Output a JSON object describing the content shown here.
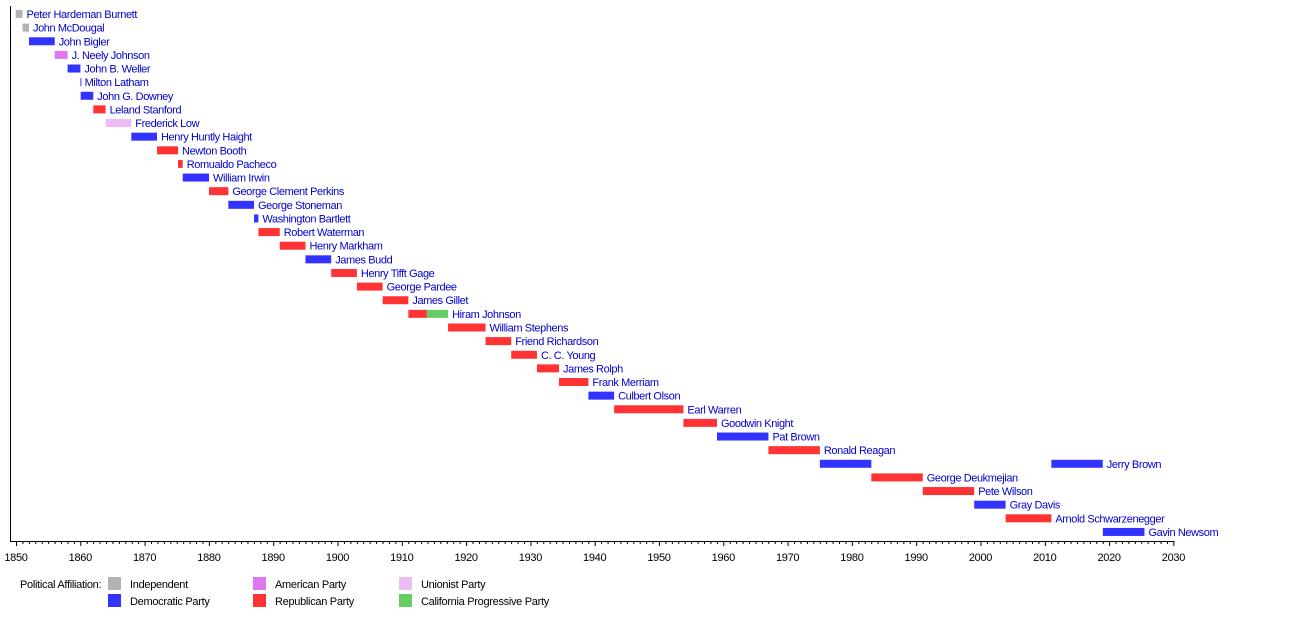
{
  "chart_data": {
    "type": "bar",
    "orientation": "horizontal-timeline",
    "xlim": [
      1850,
      2030
    ],
    "x_ticks": [
      "1850",
      "1860",
      "1870",
      "1880",
      "1890",
      "1900",
      "1910",
      "1920",
      "1930",
      "1940",
      "1950",
      "1960",
      "1970",
      "1980",
      "1990",
      "2000",
      "2010",
      "2020",
      "2030"
    ],
    "grid": false,
    "legend": {
      "title": "Political Affiliation:",
      "placement": "bottom-left",
      "entries": [
        {
          "party": "independent",
          "label": "Independent"
        },
        {
          "party": "democratic",
          "label": "Democratic Party"
        },
        {
          "party": "american",
          "label": "American Party"
        },
        {
          "party": "republican",
          "label": "Republican Party"
        },
        {
          "party": "unionist",
          "label": "Unionist Party"
        },
        {
          "party": "progressive",
          "label": "California Progressive Party"
        }
      ]
    },
    "colors": {
      "independent": "#b3b3b3",
      "democratic": "#3333ff",
      "american": "#dd77f0",
      "republican": "#ff3333",
      "unionist": "#ecbcf7",
      "progressive": "#66cc66",
      "label": "#0000cc"
    },
    "rows": [
      {
        "name": "Peter Hardeman Burnett",
        "terms": [
          {
            "start": 1849.95,
            "end": 1851.02,
            "party": "independent"
          }
        ]
      },
      {
        "name": "John McDougal",
        "terms": [
          {
            "start": 1851.02,
            "end": 1852.02,
            "party": "independent"
          }
        ]
      },
      {
        "name": "John Bigler",
        "terms": [
          {
            "start": 1852.02,
            "end": 1856.02,
            "party": "democratic"
          }
        ]
      },
      {
        "name": "J. Neely Johnson",
        "terms": [
          {
            "start": 1856.02,
            "end": 1858.02,
            "party": "american"
          }
        ]
      },
      {
        "name": "John B. Weller",
        "terms": [
          {
            "start": 1858.02,
            "end": 1860.02,
            "party": "democratic"
          }
        ]
      },
      {
        "name": "Milton Latham",
        "terms": [
          {
            "start": 1860.02,
            "end": 1860.06,
            "party": "democratic"
          }
        ]
      },
      {
        "name": "John G. Downey",
        "terms": [
          {
            "start": 1860.06,
            "end": 1862.02,
            "party": "democratic"
          }
        ]
      },
      {
        "name": "Leland Stanford",
        "terms": [
          {
            "start": 1862.02,
            "end": 1863.93,
            "party": "republican"
          }
        ]
      },
      {
        "name": "Frederick Low",
        "terms": [
          {
            "start": 1863.93,
            "end": 1867.93,
            "party": "unionist"
          }
        ]
      },
      {
        "name": "Henry Huntly Haight",
        "terms": [
          {
            "start": 1867.93,
            "end": 1871.93,
            "party": "democratic"
          }
        ]
      },
      {
        "name": "Newton Booth",
        "terms": [
          {
            "start": 1871.93,
            "end": 1875.2,
            "party": "republican"
          }
        ]
      },
      {
        "name": "Romualdo Pacheco",
        "terms": [
          {
            "start": 1875.2,
            "end": 1875.93,
            "party": "republican"
          }
        ]
      },
      {
        "name": "William Irwin",
        "terms": [
          {
            "start": 1875.93,
            "end": 1880.02,
            "party": "democratic"
          }
        ]
      },
      {
        "name": "George Clement Perkins",
        "terms": [
          {
            "start": 1880.02,
            "end": 1883.02,
            "party": "republican"
          }
        ]
      },
      {
        "name": "George Stoneman",
        "terms": [
          {
            "start": 1883.02,
            "end": 1887.02,
            "party": "democratic"
          }
        ]
      },
      {
        "name": "Washington Bartlett",
        "terms": [
          {
            "start": 1887.02,
            "end": 1887.7,
            "party": "democratic"
          }
        ]
      },
      {
        "name": "Robert Waterman",
        "terms": [
          {
            "start": 1887.7,
            "end": 1891.02,
            "party": "republican"
          }
        ]
      },
      {
        "name": "Henry Markham",
        "terms": [
          {
            "start": 1891.02,
            "end": 1895.02,
            "party": "republican"
          }
        ]
      },
      {
        "name": "James Budd",
        "terms": [
          {
            "start": 1895.02,
            "end": 1899.02,
            "party": "democratic"
          }
        ]
      },
      {
        "name": "Henry Tifft Gage",
        "terms": [
          {
            "start": 1899.02,
            "end": 1903.02,
            "party": "republican"
          }
        ]
      },
      {
        "name": "George Pardee",
        "terms": [
          {
            "start": 1903.02,
            "end": 1907.02,
            "party": "republican"
          }
        ]
      },
      {
        "name": "James Gillet",
        "terms": [
          {
            "start": 1907.02,
            "end": 1911.02,
            "party": "republican"
          }
        ]
      },
      {
        "name": "Hiram Johnson",
        "terms": [
          {
            "start": 1911.02,
            "end": 1913.9,
            "party": "republican"
          },
          {
            "start": 1913.9,
            "end": 1917.2,
            "party": "progressive"
          }
        ]
      },
      {
        "name": "William Stephens",
        "terms": [
          {
            "start": 1917.2,
            "end": 1923.02,
            "party": "republican"
          }
        ]
      },
      {
        "name": "Friend Richardson",
        "terms": [
          {
            "start": 1923.02,
            "end": 1927.02,
            "party": "republican"
          }
        ]
      },
      {
        "name": "C. C. Young",
        "terms": [
          {
            "start": 1927.02,
            "end": 1931.02,
            "party": "republican"
          }
        ]
      },
      {
        "name": "James Rolph",
        "terms": [
          {
            "start": 1931.02,
            "end": 1934.45,
            "party": "republican"
          }
        ]
      },
      {
        "name": "Frank Merriam",
        "terms": [
          {
            "start": 1934.45,
            "end": 1939.02,
            "party": "republican"
          }
        ]
      },
      {
        "name": "Culbert Olson",
        "terms": [
          {
            "start": 1939.02,
            "end": 1943.02,
            "party": "democratic"
          }
        ]
      },
      {
        "name": "Earl Warren",
        "terms": [
          {
            "start": 1943.02,
            "end": 1953.8,
            "party": "republican"
          }
        ]
      },
      {
        "name": "Goodwin Knight",
        "terms": [
          {
            "start": 1953.8,
            "end": 1959.02,
            "party": "republican"
          }
        ]
      },
      {
        "name": "Pat Brown",
        "terms": [
          {
            "start": 1959.02,
            "end": 1967.02,
            "party": "democratic"
          }
        ]
      },
      {
        "name": "Ronald Reagan",
        "terms": [
          {
            "start": 1967.02,
            "end": 1975.02,
            "party": "republican"
          }
        ]
      },
      {
        "name": "Jerry Brown",
        "terms": [
          {
            "start": 1975.02,
            "end": 1983.02,
            "party": "democratic"
          },
          {
            "start": 2011.02,
            "end": 2019.02,
            "party": "democratic"
          }
        ]
      },
      {
        "name": "George Deukmejian",
        "terms": [
          {
            "start": 1983.02,
            "end": 1991.02,
            "party": "republican"
          }
        ]
      },
      {
        "name": "Pete Wilson",
        "terms": [
          {
            "start": 1991.02,
            "end": 1999.02,
            "party": "republican"
          }
        ]
      },
      {
        "name": "Gray Davis",
        "terms": [
          {
            "start": 1999.02,
            "end": 2003.9,
            "party": "democratic"
          }
        ]
      },
      {
        "name": "Arnold Schwarzenegger",
        "terms": [
          {
            "start": 2003.9,
            "end": 2011.02,
            "party": "republican"
          }
        ]
      },
      {
        "name": "Gavin Newsom",
        "terms": [
          {
            "start": 2019.02,
            "end": 2025.5,
            "party": "democratic"
          }
        ]
      }
    ]
  }
}
